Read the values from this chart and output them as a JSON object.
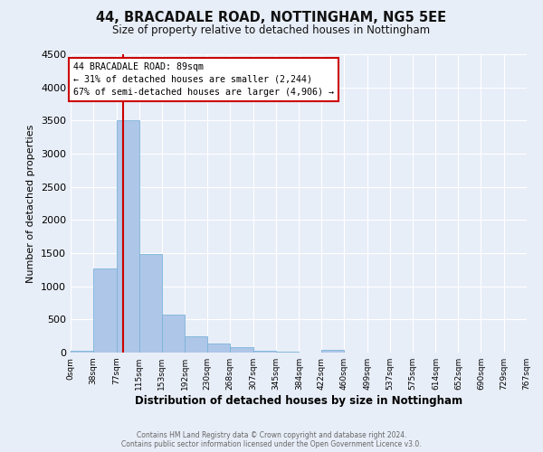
{
  "title": "44, BRACADALE ROAD, NOTTINGHAM, NG5 5EE",
  "subtitle": "Size of property relative to detached houses in Nottingham",
  "xlabel": "Distribution of detached houses by size in Nottingham",
  "ylabel": "Number of detached properties",
  "bin_edges": [
    0,
    38,
    77,
    115,
    153,
    192,
    230,
    268,
    307,
    345,
    384,
    422,
    460,
    499,
    537,
    575,
    614,
    652,
    690,
    729,
    767
  ],
  "bin_labels": [
    "0sqm",
    "38sqm",
    "77sqm",
    "115sqm",
    "153sqm",
    "192sqm",
    "230sqm",
    "268sqm",
    "307sqm",
    "345sqm",
    "384sqm",
    "422sqm",
    "460sqm",
    "499sqm",
    "537sqm",
    "575sqm",
    "614sqm",
    "652sqm",
    "690sqm",
    "729sqm",
    "767sqm"
  ],
  "bar_heights": [
    30,
    1270,
    3500,
    1480,
    575,
    245,
    135,
    80,
    30,
    10,
    5,
    40,
    0,
    0,
    0,
    0,
    0,
    0,
    0,
    0
  ],
  "bar_color": "#aec6e8",
  "bar_edgecolor": "#7ab4d8",
  "property_size": 89,
  "vline_x": 89,
  "vline_color": "#cc0000",
  "annotation_text": "44 BRACADALE ROAD: 89sqm\n← 31% of detached houses are smaller (2,244)\n67% of semi-detached houses are larger (4,906) →",
  "annotation_box_edgecolor": "#cc0000",
  "annotation_box_facecolor": "#ffffff",
  "ylim": [
    0,
    4500
  ],
  "yticks": [
    0,
    500,
    1000,
    1500,
    2000,
    2500,
    3000,
    3500,
    4000,
    4500
  ],
  "background_color": "#e8eef8",
  "grid_color": "#ffffff",
  "footer_line1": "Contains HM Land Registry data © Crown copyright and database right 2024.",
  "footer_line2": "Contains public sector information licensed under the Open Government Licence v3.0."
}
